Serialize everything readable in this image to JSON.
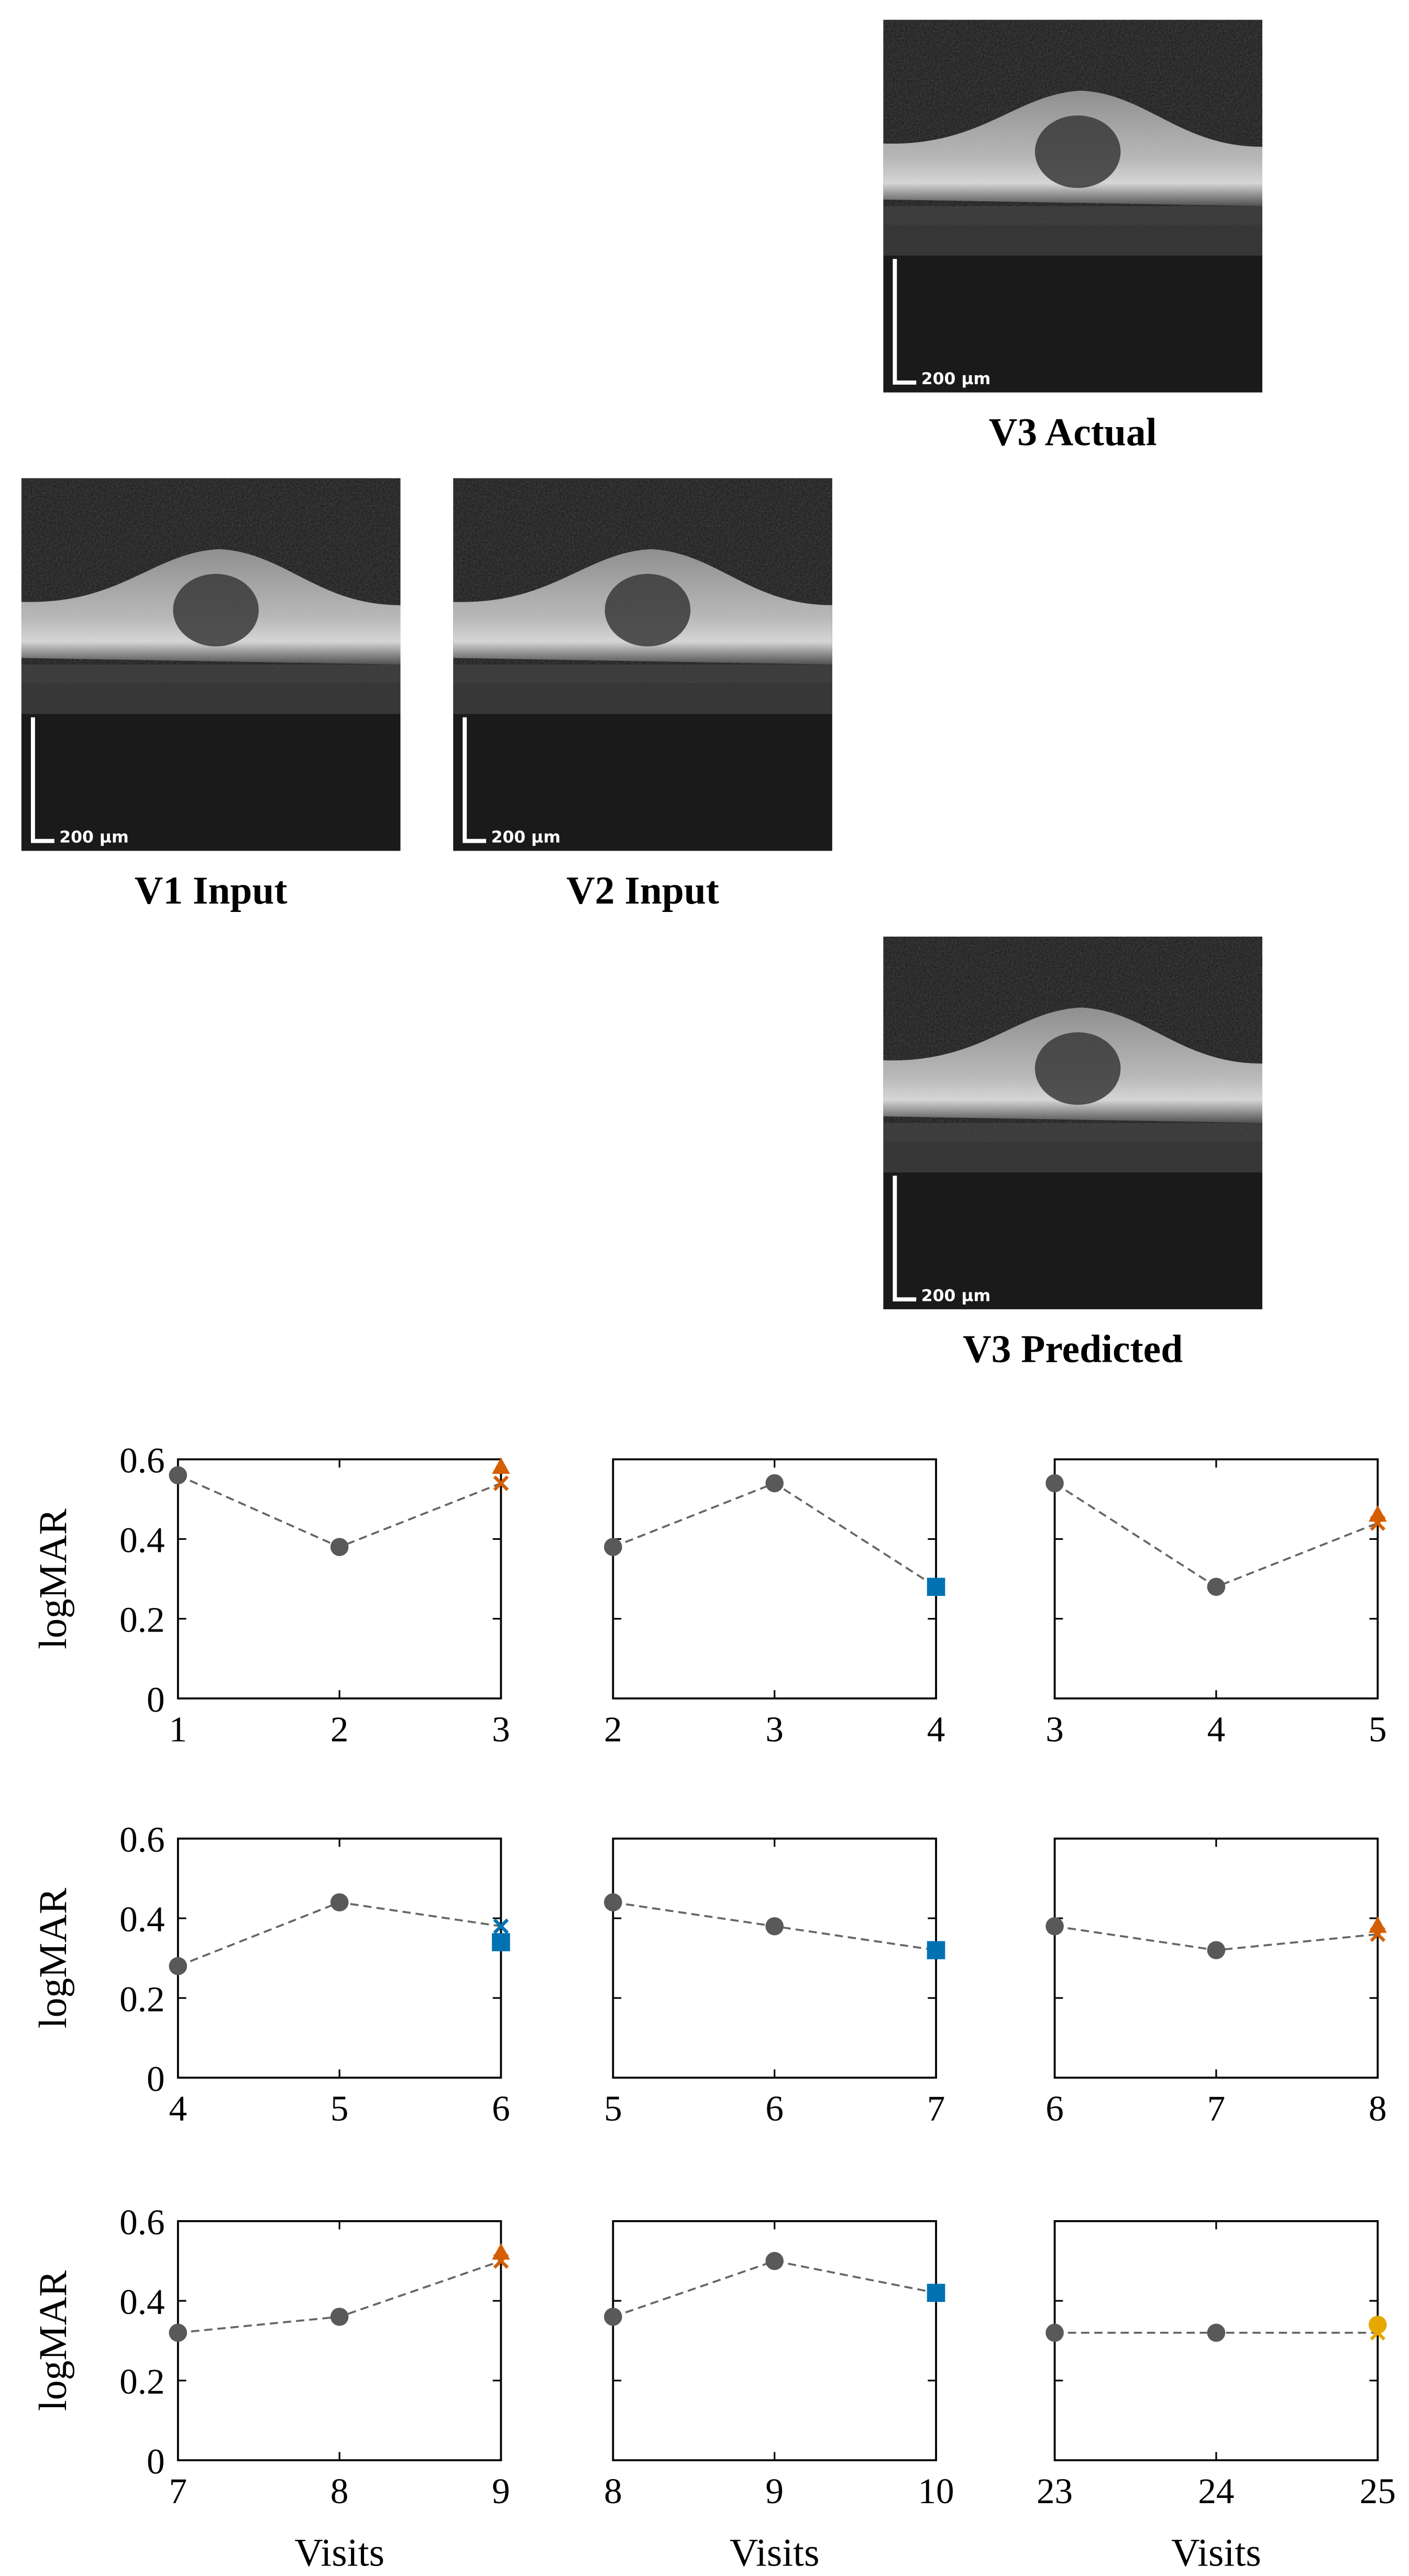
{
  "images": [
    {
      "caption": "V3 Actual",
      "scale_bar": "200 µm"
    },
    {
      "caption": "V1 Input",
      "scale_bar": "200 µm"
    },
    {
      "caption": "V2 Input",
      "scale_bar": "200 µm"
    },
    {
      "caption": "V3 Predicted",
      "scale_bar": "200 µm"
    }
  ],
  "chart_data": [
    {
      "type": "line",
      "ylabel": "logMAR",
      "x": [
        1,
        2,
        3
      ],
      "xlim": [
        1,
        3
      ],
      "xticks": [
        1,
        2,
        3
      ],
      "ylim": [
        0,
        0.6
      ],
      "yticks": [
        0,
        0.2,
        0.4,
        0.6
      ],
      "series": [
        {
          "color": "#666666",
          "line": "dashed",
          "marker": "none",
          "values": [
            0.56,
            0.38,
            0.54
          ]
        },
        {
          "color": "#595959",
          "marker": "circle",
          "values": [
            0.56,
            0.38,
            null
          ]
        },
        {
          "color": "#d55e00",
          "marker": "triangle",
          "values": [
            null,
            null,
            0.58
          ]
        },
        {
          "color": "#d55e00",
          "marker": "x",
          "values": [
            null,
            null,
            0.54
          ]
        }
      ]
    },
    {
      "type": "line",
      "x": [
        2,
        3,
        4
      ],
      "xlim": [
        2,
        4
      ],
      "xticks": [
        2,
        3,
        4
      ],
      "ylim": [
        0,
        0.6
      ],
      "yticks": [
        0,
        0.2,
        0.4,
        0.6
      ],
      "series": [
        {
          "color": "#666666",
          "line": "dashed",
          "marker": "none",
          "values": [
            0.38,
            0.54,
            0.28
          ]
        },
        {
          "color": "#595959",
          "marker": "circle",
          "values": [
            0.38,
            0.54,
            null
          ]
        },
        {
          "color": "#0072b2",
          "marker": "square",
          "values": [
            null,
            null,
            0.28
          ]
        },
        {
          "color": "#0072b2",
          "marker": "x",
          "values": [
            null,
            null,
            0.28
          ]
        }
      ]
    },
    {
      "type": "line",
      "x": [
        3,
        4,
        5
      ],
      "xlim": [
        3,
        5
      ],
      "xticks": [
        3,
        4,
        5
      ],
      "ylim": [
        0,
        0.6
      ],
      "yticks": [
        0,
        0.2,
        0.4,
        0.6
      ],
      "series": [
        {
          "color": "#666666",
          "line": "dashed",
          "marker": "none",
          "values": [
            0.54,
            0.28,
            0.44
          ]
        },
        {
          "color": "#595959",
          "marker": "circle",
          "values": [
            0.54,
            0.28,
            null
          ]
        },
        {
          "color": "#d55e00",
          "marker": "triangle",
          "values": [
            null,
            null,
            0.46
          ]
        },
        {
          "color": "#d55e00",
          "marker": "x",
          "values": [
            null,
            null,
            0.44
          ]
        }
      ]
    },
    {
      "type": "line",
      "ylabel": "logMAR",
      "x": [
        4,
        5,
        6
      ],
      "xlim": [
        4,
        6
      ],
      "xticks": [
        4,
        5,
        6
      ],
      "ylim": [
        0,
        0.6
      ],
      "yticks": [
        0,
        0.2,
        0.4,
        0.6
      ],
      "series": [
        {
          "color": "#666666",
          "line": "dashed",
          "marker": "none",
          "values": [
            0.28,
            0.44,
            0.38
          ]
        },
        {
          "color": "#595959",
          "marker": "circle",
          "values": [
            0.28,
            0.44,
            null
          ]
        },
        {
          "color": "#0072b2",
          "marker": "square",
          "values": [
            null,
            null,
            0.34
          ]
        },
        {
          "color": "#0072b2",
          "marker": "x",
          "values": [
            null,
            null,
            0.38
          ]
        }
      ]
    },
    {
      "type": "line",
      "x": [
        5,
        6,
        7
      ],
      "xlim": [
        5,
        7
      ],
      "xticks": [
        5,
        6,
        7
      ],
      "ylim": [
        0,
        0.6
      ],
      "yticks": [
        0,
        0.2,
        0.4,
        0.6
      ],
      "series": [
        {
          "color": "#666666",
          "line": "dashed",
          "marker": "none",
          "values": [
            0.44,
            0.38,
            0.32
          ]
        },
        {
          "color": "#595959",
          "marker": "circle",
          "values": [
            0.44,
            0.38,
            null
          ]
        },
        {
          "color": "#0072b2",
          "marker": "square",
          "values": [
            null,
            null,
            0.32
          ]
        },
        {
          "color": "#0072b2",
          "marker": "x",
          "values": [
            null,
            null,
            0.32
          ]
        }
      ]
    },
    {
      "type": "line",
      "x": [
        6,
        7,
        8
      ],
      "xlim": [
        6,
        8
      ],
      "xticks": [
        6,
        7,
        8
      ],
      "ylim": [
        0,
        0.6
      ],
      "yticks": [
        0,
        0.2,
        0.4,
        0.6
      ],
      "series": [
        {
          "color": "#666666",
          "line": "dashed",
          "marker": "none",
          "values": [
            0.38,
            0.32,
            0.36
          ]
        },
        {
          "color": "#595959",
          "marker": "circle",
          "values": [
            0.38,
            0.32,
            null
          ]
        },
        {
          "color": "#d55e00",
          "marker": "triangle",
          "values": [
            null,
            null,
            0.38
          ]
        },
        {
          "color": "#d55e00",
          "marker": "x",
          "values": [
            null,
            null,
            0.36
          ]
        }
      ]
    },
    {
      "type": "line",
      "ylabel": "logMAR",
      "xlabel": "Visits",
      "x": [
        7,
        8,
        9
      ],
      "xlim": [
        7,
        9
      ],
      "xticks": [
        7,
        8,
        9
      ],
      "ylim": [
        0,
        0.6
      ],
      "yticks": [
        0,
        0.2,
        0.4,
        0.6
      ],
      "series": [
        {
          "color": "#666666",
          "line": "dashed",
          "marker": "none",
          "values": [
            0.32,
            0.36,
            0.5
          ]
        },
        {
          "color": "#595959",
          "marker": "circle",
          "values": [
            0.32,
            0.36,
            null
          ]
        },
        {
          "color": "#d55e00",
          "marker": "triangle",
          "values": [
            null,
            null,
            0.52
          ]
        },
        {
          "color": "#d55e00",
          "marker": "x",
          "values": [
            null,
            null,
            0.5
          ]
        }
      ]
    },
    {
      "type": "line",
      "xlabel": "Visits",
      "x": [
        8,
        9,
        10
      ],
      "xlim": [
        8,
        10
      ],
      "xticks": [
        8,
        9,
        10
      ],
      "ylim": [
        0,
        0.6
      ],
      "yticks": [
        0,
        0.2,
        0.4,
        0.6
      ],
      "series": [
        {
          "color": "#666666",
          "line": "dashed",
          "marker": "none",
          "values": [
            0.36,
            0.5,
            0.42
          ]
        },
        {
          "color": "#595959",
          "marker": "circle",
          "values": [
            0.36,
            0.5,
            null
          ]
        },
        {
          "color": "#0072b2",
          "marker": "square",
          "values": [
            null,
            null,
            0.42
          ]
        },
        {
          "color": "#0072b2",
          "marker": "x",
          "values": [
            null,
            null,
            0.42
          ]
        }
      ]
    },
    {
      "type": "line",
      "xlabel": "Visits",
      "x": [
        23,
        24,
        25
      ],
      "xlim": [
        23,
        25
      ],
      "xticks": [
        23,
        24,
        25
      ],
      "ylim": [
        0,
        0.6
      ],
      "yticks": [
        0,
        0.2,
        0.4,
        0.6
      ],
      "series": [
        {
          "color": "#666666",
          "line": "dashed",
          "marker": "none",
          "values": [
            0.32,
            0.32,
            0.32
          ]
        },
        {
          "color": "#595959",
          "marker": "circle",
          "values": [
            0.32,
            0.32,
            null
          ]
        },
        {
          "color": "#e6a700",
          "marker": "circle",
          "values": [
            null,
            null,
            0.34
          ]
        },
        {
          "color": "#e6a700",
          "marker": "x",
          "values": [
            null,
            null,
            0.32
          ]
        }
      ]
    }
  ]
}
